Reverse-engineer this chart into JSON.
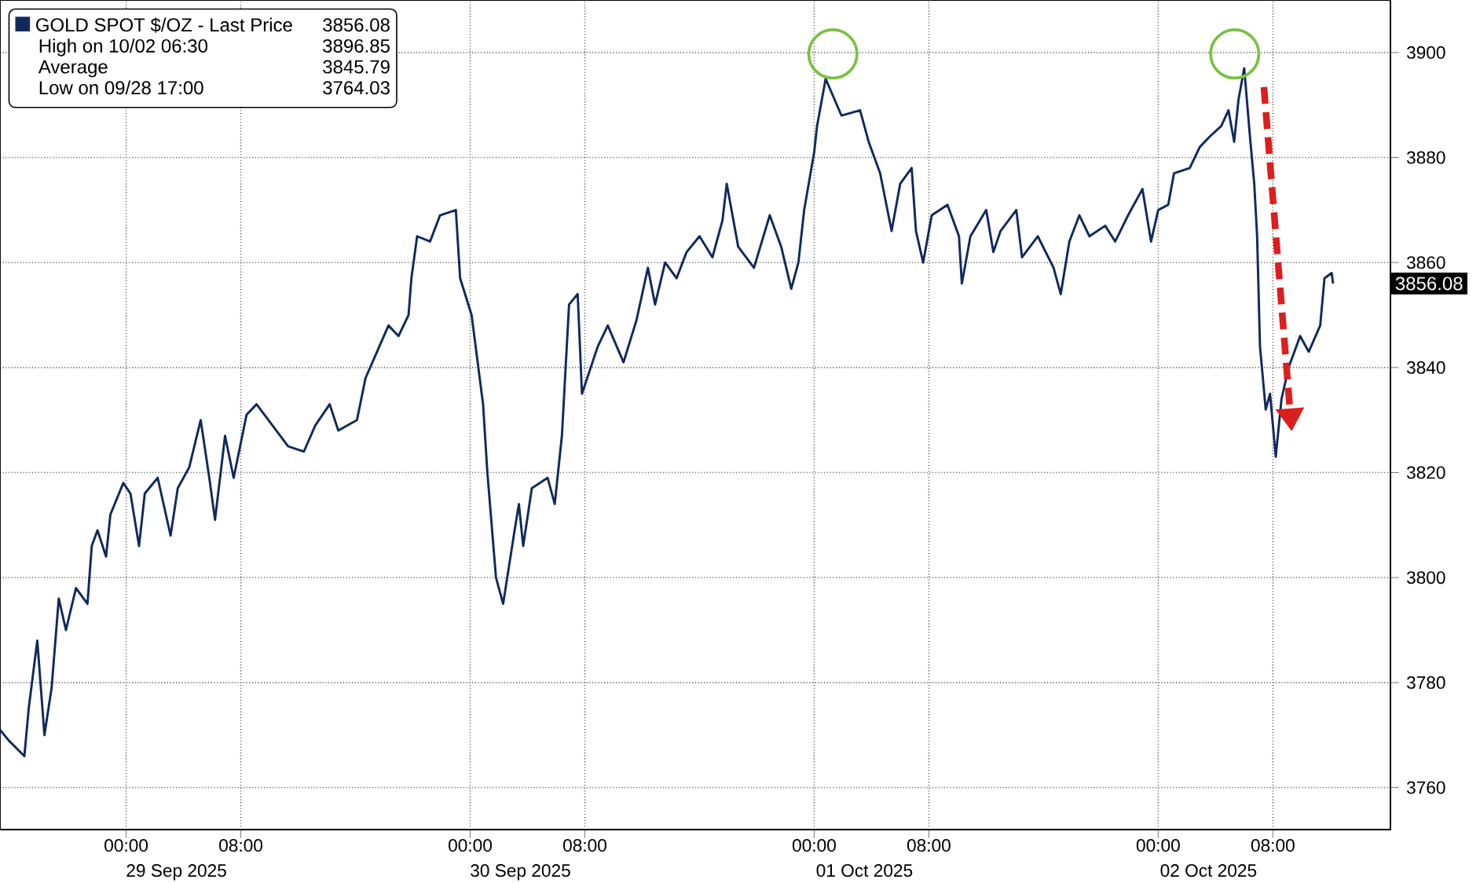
{
  "chart_data": {
    "type": "line",
    "legend": "top left",
    "grid": true,
    "xlim": [
      "2025-09-28T15:12",
      "2025-10-02T16:12"
    ],
    "ylim": [
      3752,
      3910
    ],
    "xticks": [
      {
        "value": "2025-09-29T00:00",
        "label": "00:00"
      },
      {
        "value": "2025-09-29T08:00",
        "label": "08:00"
      },
      {
        "value": "2025-09-30T00:00",
        "label": "00:00"
      },
      {
        "value": "2025-09-30T08:00",
        "label": "08:00"
      },
      {
        "value": "2025-10-01T00:00",
        "label": "00:00"
      },
      {
        "value": "2025-10-01T08:00",
        "label": "08:00"
      },
      {
        "value": "2025-10-02T00:00",
        "label": "00:00"
      },
      {
        "value": "2025-10-02T08:00",
        "label": "08:00"
      }
    ],
    "yticks": [
      3760,
      3780,
      3800,
      3820,
      3840,
      3860,
      3880,
      3900
    ],
    "annotations": [
      "3856.08",
      "High on 10/02 06:30",
      "3896.85",
      "Average",
      "3845.79",
      "Low on 09/28 17:00",
      "3764.03",
      "3856.08",
      "29 Sep 2025",
      "30 Sep 2025",
      "01 Oct 2025",
      "02 Oct 2025"
    ],
    "series": [
      {
        "name": "GOLD SPOT $/OZ - Last Price",
        "color": "#102a5c",
        "x": [
          "2025-09-28T15:12",
          "2025-09-28T15:48",
          "2025-09-28T16:54",
          "2025-09-28T17:12",
          "2025-09-28T17:48",
          "2025-09-28T18:18",
          "2025-09-28T18:48",
          "2025-09-28T19:18",
          "2025-09-28T19:48",
          "2025-09-28T20:30",
          "2025-09-28T21:18",
          "2025-09-28T21:36",
          "2025-09-28T22:00",
          "2025-09-28T22:36",
          "2025-09-28T22:54",
          "2025-09-28T23:48",
          "2025-09-29T00:18",
          "2025-09-29T00:54",
          "2025-09-29T01:18",
          "2025-09-29T02:12",
          "2025-09-29T03:06",
          "2025-09-29T03:36",
          "2025-09-29T04:24",
          "2025-09-29T05:12",
          "2025-09-29T05:48",
          "2025-09-29T06:12",
          "2025-09-29T06:54",
          "2025-09-29T07:30",
          "2025-09-29T08:24",
          "2025-09-29T09:06",
          "2025-09-29T10:12",
          "2025-09-29T11:18",
          "2025-09-29T12:24",
          "2025-09-29T13:12",
          "2025-09-29T14:12",
          "2025-09-29T14:48",
          "2025-09-29T16:06",
          "2025-09-29T16:42",
          "2025-09-29T17:30",
          "2025-09-29T18:18",
          "2025-09-29T19:00",
          "2025-09-29T19:42",
          "2025-09-29T19:54",
          "2025-09-29T20:18",
          "2025-09-29T21:12",
          "2025-09-29T21:54",
          "2025-09-29T23:00",
          "2025-09-29T23:18",
          "2025-09-30T00:06",
          "2025-09-30T00:54",
          "2025-09-30T01:12",
          "2025-09-30T01:48",
          "2025-09-30T02:18",
          "2025-09-30T03:06",
          "2025-09-30T03:24",
          "2025-09-30T03:42",
          "2025-09-30T04:18",
          "2025-09-30T05:24",
          "2025-09-30T05:54",
          "2025-09-30T06:24",
          "2025-09-30T06:54",
          "2025-09-30T07:30",
          "2025-09-30T07:48",
          "2025-09-30T08:54",
          "2025-09-30T09:36",
          "2025-09-30T10:42",
          "2025-09-30T11:36",
          "2025-09-30T12:24",
          "2025-09-30T12:54",
          "2025-09-30T13:36",
          "2025-09-30T14:24",
          "2025-09-30T15:06",
          "2025-09-30T16:00",
          "2025-09-30T16:54",
          "2025-09-30T17:36",
          "2025-09-30T17:54",
          "2025-09-30T18:42",
          "2025-09-30T19:48",
          "2025-09-30T20:54",
          "2025-09-30T21:42",
          "2025-09-30T22:24",
          "2025-09-30T22:54",
          "2025-09-30T23:18",
          "2025-10-01T00:00",
          "2025-10-01T00:12",
          "2025-10-01T00:48",
          "2025-10-01T01:54",
          "2025-10-01T03:12",
          "2025-10-01T03:48",
          "2025-10-01T04:36",
          "2025-10-01T05:24",
          "2025-10-01T06:00",
          "2025-10-01T06:48",
          "2025-10-01T07:06",
          "2025-10-01T07:36",
          "2025-10-01T08:12",
          "2025-10-01T09:18",
          "2025-10-01T10:06",
          "2025-10-01T10:18",
          "2025-10-01T10:54",
          "2025-10-01T12:00",
          "2025-10-01T12:30",
          "2025-10-01T13:00",
          "2025-10-01T14:06",
          "2025-10-01T14:30",
          "2025-10-01T15:36",
          "2025-10-01T16:42",
          "2025-10-01T17:12",
          "2025-10-01T17:48",
          "2025-10-01T18:30",
          "2025-10-01T19:12",
          "2025-10-01T20:18",
          "2025-10-01T21:00",
          "2025-10-01T21:54",
          "2025-10-01T22:54",
          "2025-10-01T23:30",
          "2025-10-02T00:00",
          "2025-10-02T00:42",
          "2025-10-02T01:06",
          "2025-10-02T02:12",
          "2025-10-02T02:54",
          "2025-10-02T03:36",
          "2025-10-02T04:24",
          "2025-10-02T04:54",
          "2025-10-02T05:18",
          "2025-10-02T05:36",
          "2025-10-02T06:00",
          "2025-10-02T06:24",
          "2025-10-02T06:42",
          "2025-10-02T06:54",
          "2025-10-02T07:06",
          "2025-10-02T07:30",
          "2025-10-02T07:48",
          "2025-10-02T08:12",
          "2025-10-02T08:36",
          "2025-10-02T09:06",
          "2025-10-02T09:54",
          "2025-10-02T10:30",
          "2025-10-02T11:18",
          "2025-10-02T11:36",
          "2025-10-02T12:06",
          "2025-10-02T12:12"
        ],
        "values": [
          3771,
          3769,
          3766,
          3775,
          3788,
          3770,
          3779,
          3796,
          3790,
          3798,
          3795,
          3806,
          3809,
          3804,
          3812,
          3818,
          3816,
          3806,
          3816,
          3819,
          3808,
          3817,
          3821,
          3830,
          3819,
          3811,
          3827,
          3819,
          3831,
          3833,
          3829,
          3825,
          3824,
          3829,
          3833,
          3828,
          3830,
          3838,
          3843,
          3848,
          3846,
          3850,
          3857,
          3865,
          3864,
          3869,
          3870,
          3857,
          3850,
          3833,
          3820,
          3800,
          3795,
          3809,
          3814,
          3806,
          3817,
          3819,
          3814,
          3827,
          3852,
          3854,
          3835,
          3844,
          3848,
          3841,
          3849,
          3859,
          3852,
          3860,
          3857,
          3862,
          3865,
          3861,
          3868,
          3875,
          3863,
          3859,
          3869,
          3863,
          3855,
          3860,
          3870,
          3881,
          3886,
          3895,
          3888,
          3889,
          3883,
          3877,
          3866,
          3875,
          3878,
          3866,
          3860,
          3869,
          3871,
          3865,
          3856,
          3865,
          3870,
          3862,
          3866,
          3870,
          3861,
          3865,
          3859,
          3854,
          3864,
          3869,
          3865,
          3867,
          3864,
          3869,
          3874,
          3864,
          3870,
          3871,
          3877,
          3878,
          3882,
          3884,
          3886,
          3889,
          3883,
          3891,
          3897,
          3884,
          3875,
          3865,
          3844,
          3832,
          3835,
          3823,
          3834,
          3840,
          3846,
          3843,
          3848,
          3857,
          3858,
          3856
        ]
      }
    ]
  }
}
